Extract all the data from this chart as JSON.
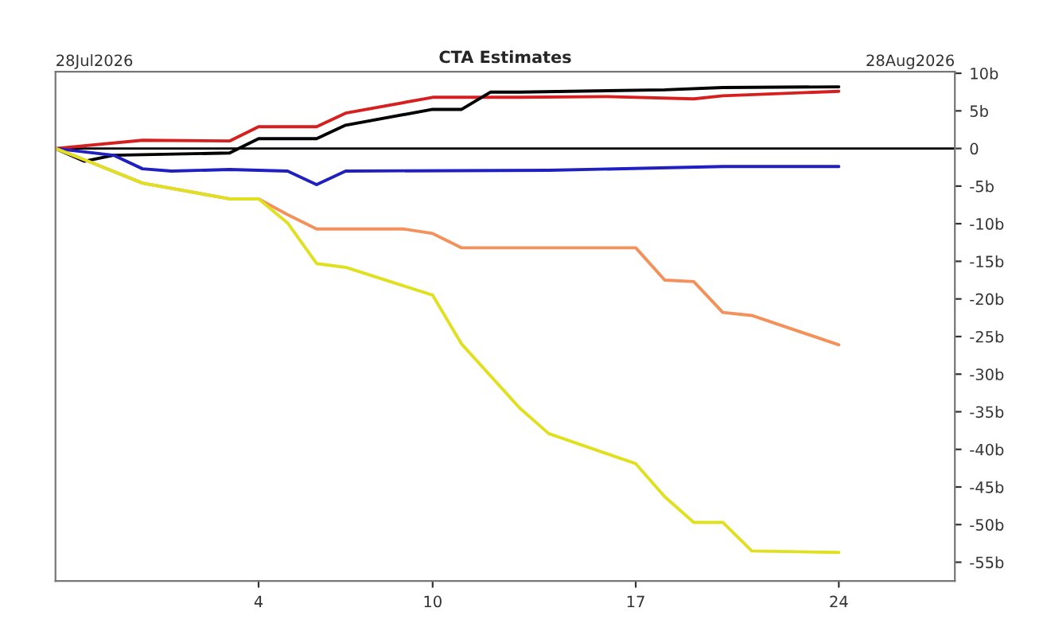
{
  "chart_data": {
    "type": "line",
    "title": "CTA Estimates",
    "annotations": [
      "28Jul2026",
      "28Aug2026"
    ],
    "xlim": [
      "2026-07-28",
      "2026-08-28"
    ],
    "xticks": [
      {
        "value": "2026-08-04",
        "label": "4"
      },
      {
        "value": "2026-08-10",
        "label": "10"
      },
      {
        "value": "2026-08-17",
        "label": "17"
      },
      {
        "value": "2026-08-24",
        "label": "24"
      }
    ],
    "ylim": [
      -57.5,
      10.2
    ],
    "yticks": [
      {
        "value": 10,
        "label": "10b"
      },
      {
        "value": 5,
        "label": "5b"
      },
      0,
      {
        "value": -5,
        "label": "-5b"
      },
      {
        "value": -10,
        "label": "-10b"
      },
      {
        "value": -15,
        "label": "-15b"
      },
      {
        "value": -20,
        "label": "-20b"
      },
      {
        "value": -25,
        "label": "-25b"
      },
      {
        "value": -30,
        "label": "-30b"
      },
      {
        "value": -35,
        "label": "-35b"
      },
      {
        "value": -40,
        "label": "-40b"
      },
      {
        "value": -45,
        "label": "-45b"
      },
      {
        "value": -50,
        "label": "-50b"
      },
      {
        "value": -55,
        "label": "-55b"
      }
    ],
    "ref_lines": [
      {
        "axis": "y",
        "value": 0,
        "color": "#000000"
      }
    ],
    "grid": false,
    "legend": false,
    "series": [
      {
        "color": "#d62020",
        "x": [
          "2026-07-28",
          "2026-07-31",
          "2026-08-03",
          "2026-08-04",
          "2026-08-06",
          "2026-08-07",
          "2026-08-10",
          "2026-08-13",
          "2026-08-16",
          "2026-08-19",
          "2026-08-20",
          "2026-08-24"
        ],
        "values": [
          0,
          1.1,
          1.0,
          2.9,
          2.9,
          4.7,
          6.8,
          6.8,
          6.9,
          6.6,
          7.0,
          7.6
        ]
      },
      {
        "color": "#000000",
        "x": [
          "2026-07-28",
          "2026-07-29",
          "2026-07-30",
          "2026-08-03",
          "2026-08-04",
          "2026-08-06",
          "2026-08-07",
          "2026-08-10",
          "2026-08-11",
          "2026-08-12",
          "2026-08-13",
          "2026-08-18",
          "2026-08-20",
          "2026-08-24"
        ],
        "values": [
          0,
          -1.7,
          -0.9,
          -0.6,
          1.3,
          1.3,
          3.1,
          5.2,
          5.2,
          7.5,
          7.5,
          7.8,
          8.1,
          8.2
        ]
      },
      {
        "color": "#2020c0",
        "x": [
          "2026-07-28",
          "2026-07-30",
          "2026-07-31",
          "2026-08-01",
          "2026-08-03",
          "2026-08-05",
          "2026-08-06",
          "2026-08-07",
          "2026-08-14",
          "2026-08-20",
          "2026-08-24"
        ],
        "values": [
          0,
          -0.9,
          -2.7,
          -3.0,
          -2.8,
          -3.0,
          -4.8,
          -3.0,
          -2.9,
          -2.4,
          -2.4
        ]
      },
      {
        "color": "#f4905a",
        "x": [
          "2026-07-28",
          "2026-07-29",
          "2026-07-31",
          "2026-08-03",
          "2026-08-04",
          "2026-08-05",
          "2026-08-06",
          "2026-08-09",
          "2026-08-10",
          "2026-08-11",
          "2026-08-17",
          "2026-08-18",
          "2026-08-19",
          "2026-08-20",
          "2026-08-21",
          "2026-08-24"
        ],
        "values": [
          0,
          -1.5,
          -4.6,
          -6.7,
          -6.7,
          -8.8,
          -10.7,
          -10.7,
          -11.3,
          -13.2,
          -13.2,
          -17.5,
          -17.7,
          -21.8,
          -22.2,
          -26.1
        ]
      },
      {
        "color": "#e0e020",
        "x": [
          "2026-07-28",
          "2026-07-29",
          "2026-07-31",
          "2026-08-03",
          "2026-08-04",
          "2026-08-05",
          "2026-08-06",
          "2026-08-07",
          "2026-08-10",
          "2026-08-11",
          "2026-08-13",
          "2026-08-14",
          "2026-08-17",
          "2026-08-18",
          "2026-08-19",
          "2026-08-20",
          "2026-08-21",
          "2026-08-24"
        ],
        "values": [
          0,
          -1.5,
          -4.6,
          -6.7,
          -6.7,
          -9.9,
          -15.3,
          -15.8,
          -19.5,
          -26.0,
          -34.5,
          -37.9,
          -41.9,
          -46.3,
          -49.7,
          -49.7,
          -53.5,
          -53.7
        ]
      }
    ]
  }
}
